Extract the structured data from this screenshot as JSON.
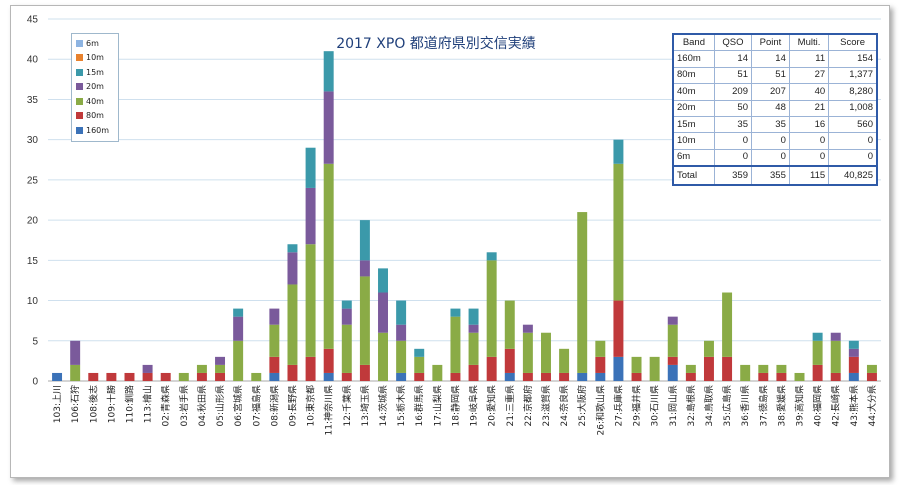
{
  "chart_data": {
    "type": "bar",
    "stacked": true,
    "title": "2017 XPO 都道府県別交信実績",
    "xlabel": "",
    "ylabel": "",
    "ylim": [
      0,
      45
    ],
    "yticks": [
      0,
      5,
      10,
      15,
      20,
      25,
      30,
      35,
      40,
      45
    ],
    "grid": true,
    "legend_position": "top-left",
    "categories": [
      "103:上川",
      "106:石狩",
      "108:後志",
      "109:十勝",
      "110:釧路",
      "113:檜山",
      "02:青森県",
      "03:岩手県",
      "04:秋田県",
      "05:山形県",
      "06:宮城県",
      "07:福島県",
      "08:新潟県",
      "09:長野県",
      "10:東京都",
      "11:神奈川県",
      "12:千葉県",
      "13:埼玉県",
      "14:茨城県",
      "15:栃木県",
      "16:群馬県",
      "17:山梨県",
      "18:静岡県",
      "19:岐阜県",
      "20:愛知県",
      "21:三重県",
      "22:京都府",
      "23:滋賀県",
      "24:奈良県",
      "25:大阪府",
      "26:和歌山県",
      "27:兵庫県",
      "29:福井県",
      "30:石川県",
      "31:岡山県",
      "32:島根県",
      "34:鳥取県",
      "35:広島県",
      "36:香川県",
      "37:徳島県",
      "38:愛媛県",
      "39:高知県",
      "40:福岡県",
      "42:長崎県",
      "43:熊本県",
      "44:大分県"
    ],
    "series": [
      {
        "name": "160m",
        "color": "#3b72b8",
        "values": [
          1,
          0,
          0,
          0,
          0,
          0,
          0,
          0,
          0,
          0,
          0,
          0,
          1,
          0,
          0,
          1,
          0,
          0,
          0,
          1,
          0,
          0,
          0,
          0,
          0,
          1,
          0,
          0,
          0,
          1,
          1,
          3,
          0,
          0,
          2,
          0,
          0,
          0,
          0,
          0,
          0,
          0,
          0,
          0,
          1,
          0
        ]
      },
      {
        "name": "80m",
        "color": "#c0393b",
        "values": [
          0,
          0,
          1,
          1,
          1,
          1,
          1,
          0,
          1,
          1,
          0,
          0,
          2,
          2,
          3,
          3,
          1,
          2,
          0,
          0,
          1,
          0,
          1,
          2,
          3,
          3,
          1,
          1,
          1,
          0,
          2,
          7,
          1,
          0,
          1,
          1,
          3,
          3,
          0,
          1,
          1,
          0,
          2,
          1,
          2,
          1
        ]
      },
      {
        "name": "40m",
        "color": "#8aab46",
        "values": [
          0,
          2,
          0,
          0,
          0,
          0,
          0,
          1,
          1,
          1,
          5,
          1,
          4,
          10,
          14,
          23,
          6,
          11,
          6,
          4,
          2,
          2,
          7,
          4,
          12,
          6,
          5,
          5,
          3,
          20,
          2,
          17,
          2,
          3,
          4,
          1,
          2,
          8,
          2,
          1,
          1,
          1,
          3,
          4,
          0,
          1
        ]
      },
      {
        "name": "20m",
        "color": "#7a5a9b",
        "values": [
          0,
          3,
          0,
          0,
          0,
          1,
          0,
          0,
          0,
          1,
          3,
          0,
          2,
          4,
          7,
          9,
          2,
          2,
          5,
          2,
          0,
          0,
          0,
          1,
          0,
          0,
          1,
          0,
          0,
          0,
          0,
          0,
          0,
          0,
          1,
          0,
          0,
          0,
          0,
          0,
          0,
          0,
          0,
          1,
          1,
          0
        ]
      },
      {
        "name": "15m",
        "color": "#3b99aa",
        "values": [
          0,
          0,
          0,
          0,
          0,
          0,
          0,
          0,
          0,
          0,
          1,
          0,
          0,
          1,
          5,
          5,
          1,
          5,
          3,
          3,
          1,
          0,
          1,
          2,
          1,
          0,
          0,
          0,
          0,
          0,
          0,
          3,
          0,
          0,
          0,
          0,
          0,
          0,
          0,
          0,
          0,
          0,
          1,
          0,
          1,
          0
        ]
      },
      {
        "name": "10m",
        "color": "#e8822e",
        "values": [
          0,
          0,
          0,
          0,
          0,
          0,
          0,
          0,
          0,
          0,
          0,
          0,
          0,
          0,
          0,
          0,
          0,
          0,
          0,
          0,
          0,
          0,
          0,
          0,
          0,
          0,
          0,
          0,
          0,
          0,
          0,
          0,
          0,
          0,
          0,
          0,
          0,
          0,
          0,
          0,
          0,
          0,
          0,
          0,
          0,
          0
        ]
      },
      {
        "name": "6m",
        "color": "#8db4e2",
        "values": [
          0,
          0,
          0,
          0,
          0,
          0,
          0,
          0,
          0,
          0,
          0,
          0,
          0,
          0,
          0,
          0,
          0,
          0,
          0,
          0,
          0,
          0,
          0,
          0,
          0,
          0,
          0,
          0,
          0,
          0,
          0,
          0,
          0,
          0,
          0,
          0,
          0,
          0,
          0,
          0,
          0,
          0,
          0,
          0,
          0,
          0
        ]
      }
    ],
    "legend_order": [
      "6m",
      "10m",
      "15m",
      "20m",
      "40m",
      "80m",
      "160m"
    ]
  },
  "score_table": {
    "headers": [
      "Band",
      "QSO",
      "Point",
      "Multi.",
      "Score"
    ],
    "rows": [
      [
        "160m",
        "14",
        "14",
        "11",
        "154"
      ],
      [
        "80m",
        "51",
        "51",
        "27",
        "1,377"
      ],
      [
        "40m",
        "209",
        "207",
        "40",
        "8,280"
      ],
      [
        "20m",
        "50",
        "48",
        "21",
        "1,008"
      ],
      [
        "15m",
        "35",
        "35",
        "16",
        "560"
      ],
      [
        "10m",
        "0",
        "0",
        "0",
        "0"
      ],
      [
        "6m",
        "0",
        "0",
        "0",
        "0"
      ]
    ],
    "total": [
      "Total",
      "359",
      "355",
      "115",
      "40,825"
    ]
  }
}
